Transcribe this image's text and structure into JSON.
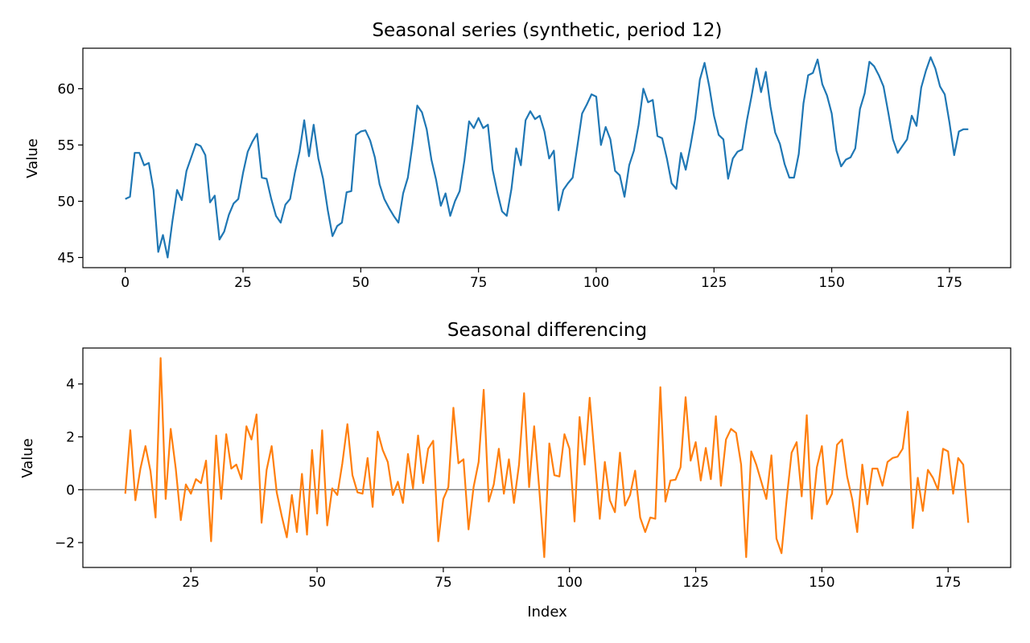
{
  "figure_colors": {
    "series": "#1f77b4",
    "diff": "#ff7f0e",
    "zero_line": "#808080",
    "axes": "#000000",
    "background": "#ffffff"
  },
  "chart_data": [
    {
      "type": "line",
      "title": "Seasonal series (synthetic, period 12)",
      "xlabel": "",
      "ylabel": "Value",
      "xlim": [
        -9,
        188
      ],
      "ylim": [
        44.1,
        63.6
      ],
      "xticks": [
        0,
        25,
        50,
        75,
        100,
        125,
        150,
        175
      ],
      "yticks": [
        45,
        50,
        55,
        60
      ],
      "grid": false,
      "series": [
        {
          "color": "#1f77b4",
          "x_start": 0,
          "values": [
            50.2,
            50.4,
            54.3,
            54.3,
            53.2,
            53.4,
            51.0,
            45.5,
            47.0,
            45.0,
            48.2,
            51.0,
            50.1,
            52.7,
            53.9,
            55.1,
            54.9,
            54.1,
            49.9,
            50.5,
            46.6,
            47.3,
            48.8,
            49.8,
            50.2,
            52.5,
            54.4,
            55.3,
            56.0,
            52.1,
            52.0,
            50.2,
            48.7,
            48.1,
            49.7,
            50.2,
            52.5,
            54.4,
            57.2,
            54.0,
            56.8,
            53.8,
            52.0,
            49.2,
            46.9,
            47.8,
            48.1,
            50.8,
            50.9,
            55.9,
            56.2,
            56.3,
            55.4,
            53.9,
            51.5,
            50.2,
            49.4,
            48.7,
            48.1,
            50.7,
            52.1,
            55.1,
            58.5,
            57.9,
            56.4,
            53.7,
            51.9,
            49.6,
            50.7,
            48.7,
            50.0,
            50.9,
            53.6,
            57.1,
            56.5,
            57.4,
            56.5,
            56.8,
            52.8,
            50.8,
            49.1,
            48.7,
            51.1,
            54.7,
            53.2,
            57.2,
            58.0,
            57.3,
            57.6,
            56.2,
            53.8,
            54.5,
            49.2,
            51.0,
            51.6,
            52.1,
            54.9,
            57.8,
            58.6,
            59.5,
            59.3,
            55.0,
            56.6,
            55.5,
            52.7,
            52.3,
            50.4,
            53.2,
            54.5,
            56.8,
            60.0,
            58.8,
            59.0,
            55.8,
            55.6,
            53.8,
            51.6,
            51.1,
            54.3,
            52.8,
            54.9,
            57.3,
            60.8,
            62.3,
            60.2,
            57.6,
            55.9,
            55.5,
            52.0,
            53.8,
            54.4,
            54.6,
            57.2,
            59.4,
            61.8,
            59.7,
            61.5,
            58.4,
            56.1,
            55.1,
            53.3,
            52.1,
            52.1,
            54.2,
            58.7,
            61.2,
            61.4,
            62.6,
            60.4,
            59.4,
            57.8,
            54.5,
            53.1,
            53.7,
            53.9,
            54.7,
            58.2,
            59.6,
            62.4,
            62.0,
            61.2,
            60.2,
            57.9,
            55.5,
            54.3,
            54.9,
            55.5,
            57.6,
            56.7,
            60.1,
            61.6,
            62.8,
            61.8,
            60.2,
            59.5,
            57.0,
            54.1,
            56.2,
            56.4,
            56.4
          ]
        }
      ]
    },
    {
      "type": "line",
      "title": "Seasonal differencing",
      "xlabel": "Index",
      "ylabel": "Value",
      "xlim": [
        3.6,
        187.4
      ],
      "ylim": [
        -2.94,
        5.36
      ],
      "xticks": [
        25,
        50,
        75,
        100,
        125,
        150,
        175
      ],
      "yticks": [
        -2,
        0,
        2,
        4
      ],
      "grid": false,
      "hline": {
        "y": 0,
        "color": "#808080"
      },
      "series": [
        {
          "color": "#ff7f0e",
          "x_start": 12,
          "values": [
            -0.15,
            2.25,
            -0.4,
            0.8,
            1.65,
            0.7,
            -1.05,
            4.98,
            -0.35,
            2.3,
            0.8,
            -1.15,
            0.2,
            -0.15,
            0.4,
            0.25,
            1.1,
            -1.95,
            2.05,
            -0.35,
            2.1,
            0.8,
            0.95,
            0.4,
            2.4,
            1.9,
            2.85,
            -1.25,
            0.75,
            1.65,
            -0.1,
            -1.0,
            -1.8,
            -0.2,
            -1.6,
            0.6,
            -1.7,
            1.5,
            -0.9,
            2.25,
            -1.35,
            0.05,
            -0.2,
            1.0,
            2.48,
            0.55,
            -0.1,
            -0.15,
            1.2,
            -0.65,
            2.2,
            1.5,
            1.05,
            -0.2,
            0.3,
            -0.5,
            1.35,
            0.05,
            2.05,
            0.25,
            1.55,
            1.85,
            -1.95,
            -0.35,
            0.1,
            3.1,
            1.0,
            1.15,
            -1.5,
            0.1,
            1.05,
            3.78,
            -0.45,
            0.2,
            1.55,
            -0.15,
            1.15,
            -0.5,
            0.95,
            3.65,
            0.1,
            2.4,
            0.05,
            -2.55,
            1.75,
            0.55,
            0.5,
            2.1,
            1.55,
            -1.2,
            2.75,
            0.95,
            3.48,
            1.2,
            -1.1,
            1.05,
            -0.4,
            -0.85,
            1.4,
            -0.6,
            -0.2,
            0.72,
            -1.05,
            -1.6,
            -1.05,
            -1.1,
            3.88,
            -0.45,
            0.35,
            0.38,
            0.85,
            3.5,
            1.1,
            1.8,
            0.35,
            1.58,
            0.4,
            2.78,
            0.15,
            1.9,
            2.3,
            2.15,
            0.95,
            -2.55,
            1.45,
            0.95,
            0.3,
            -0.35,
            1.3,
            -1.85,
            -2.4,
            -0.4,
            1.4,
            1.8,
            -0.25,
            2.82,
            -1.1,
            0.85,
            1.65,
            -0.55,
            -0.15,
            1.7,
            1.9,
            0.5,
            -0.35,
            -1.6,
            0.95,
            -0.55,
            0.8,
            0.8,
            0.15,
            1.05,
            1.2,
            1.25,
            1.55,
            2.95,
            -1.45,
            0.45,
            -0.8,
            0.75,
            0.45,
            0.0,
            1.55,
            1.45,
            -0.15,
            1.2,
            0.95,
            -1.25
          ]
        }
      ]
    }
  ]
}
